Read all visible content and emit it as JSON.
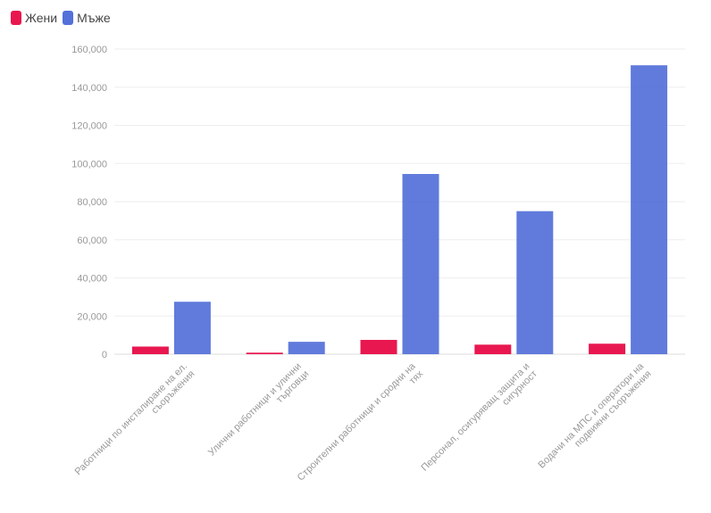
{
  "legend": {
    "items": [
      {
        "label": "Жени",
        "color": "#e8174f"
      },
      {
        "label": "Мъже",
        "color": "#5470d9"
      }
    ]
  },
  "chart_data": {
    "type": "bar",
    "categories": [
      [
        "Работници по инсталиране на ел.",
        "съоръжения"
      ],
      [
        "Улични работници и улични",
        "търговци"
      ],
      [
        "Строителни работници и сродни на",
        "тях"
      ],
      [
        "Персонал, осигуряващ защита и",
        "сигурност"
      ],
      [
        "Водачи на МПС и оператори на",
        "подвижни съоръжения"
      ]
    ],
    "series": [
      {
        "name": "Жени",
        "color": "#e8174f",
        "values": [
          4000,
          800,
          7500,
          5000,
          5500
        ]
      },
      {
        "name": "Мъже",
        "color": "#5470d9",
        "values": [
          27500,
          6500,
          94500,
          75000,
          151500
        ]
      }
    ],
    "ylim": [
      0,
      160000
    ],
    "yticks": [
      "0",
      "20,000",
      "40,000",
      "60,000",
      "80,000",
      "100,000",
      "120,000",
      "140,000",
      "160,000"
    ],
    "grid": true,
    "legend_position": "top-left"
  }
}
